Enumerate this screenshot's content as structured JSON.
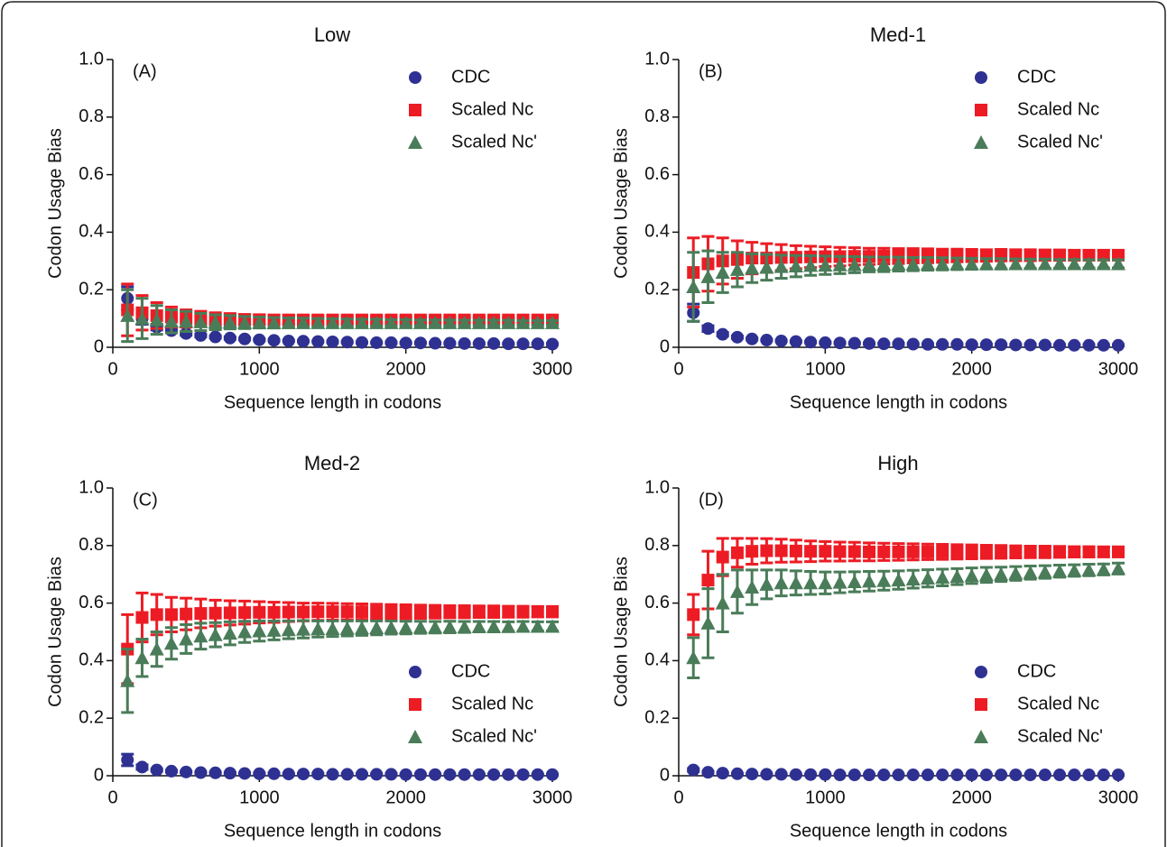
{
  "chart_data": [
    {
      "type": "scatter",
      "title": "Low",
      "panel_label": "(A)",
      "xlabel": "Sequence length in codons",
      "ylabel": "Codon Usage Bias",
      "xlim": [
        0,
        3000
      ],
      "ylim": [
        0,
        1
      ],
      "xticks": [
        0,
        1000,
        2000,
        3000
      ],
      "yticks": [
        0,
        0.2,
        0.4,
        0.6,
        0.8,
        {
          "value": 1,
          "label": "1.0"
        }
      ],
      "legend": "upper right",
      "x": [
        100,
        200,
        300,
        400,
        500,
        600,
        700,
        800,
        900,
        1000,
        1100,
        1200,
        1300,
        1400,
        1500,
        1600,
        1700,
        1800,
        1900,
        2000,
        2100,
        2200,
        2300,
        2400,
        2500,
        2600,
        2700,
        2800,
        2900,
        3000
      ],
      "series": [
        {
          "name": "CDC",
          "color": "#2e3192",
          "marker": "circle",
          "values": [
            0.17,
            0.1,
            0.07,
            0.058,
            0.048,
            0.041,
            0.036,
            0.032,
            0.029,
            0.026,
            0.024,
            0.022,
            0.021,
            0.02,
            0.019,
            0.018,
            0.017,
            0.016,
            0.016,
            0.015,
            0.015,
            0.014,
            0.014,
            0.013,
            0.013,
            0.013,
            0.012,
            0.012,
            0.012,
            0.011
          ],
          "errors": [
            0.04,
            0.02,
            0.01,
            0.008,
            0.006,
            0.005,
            0.004,
            0.004,
            0.003,
            0.003,
            0.002,
            0.002,
            0.002,
            0.002,
            0.002,
            0.002,
            0.002,
            0.002,
            0.002,
            0.002,
            0.002,
            0.002,
            0.002,
            0.002,
            0.002,
            0.002,
            0.002,
            0.002,
            0.002,
            0.002
          ]
        },
        {
          "name": "Scaled Nc",
          "color": "#ed1c24",
          "marker": "square",
          "values": [
            0.13,
            0.12,
            0.11,
            0.105,
            0.1,
            0.1,
            0.098,
            0.097,
            0.096,
            0.096,
            0.095,
            0.095,
            0.095,
            0.095,
            0.095,
            0.095,
            0.095,
            0.095,
            0.095,
            0.095,
            0.095,
            0.095,
            0.095,
            0.095,
            0.095,
            0.095,
            0.095,
            0.095,
            0.095,
            0.095
          ],
          "errors": [
            0.09,
            0.06,
            0.045,
            0.035,
            0.03,
            0.025,
            0.022,
            0.02,
            0.018,
            0.017,
            0.016,
            0.015,
            0.014,
            0.013,
            0.012,
            0.012,
            0.011,
            0.011,
            0.01,
            0.01,
            0.01,
            0.009,
            0.009,
            0.009,
            0.009,
            0.008,
            0.008,
            0.008,
            0.008,
            0.008
          ]
        },
        {
          "name": "Scaled Nc'",
          "color": "#4a7c59",
          "marker": "triangle",
          "values": [
            0.11,
            0.1,
            0.095,
            0.09,
            0.09,
            0.088,
            0.087,
            0.087,
            0.086,
            0.086,
            0.085,
            0.085,
            0.085,
            0.085,
            0.085,
            0.085,
            0.085,
            0.085,
            0.085,
            0.085,
            0.085,
            0.085,
            0.085,
            0.085,
            0.085,
            0.085,
            0.085,
            0.085,
            0.085,
            0.085
          ],
          "errors": [
            0.09,
            0.07,
            0.05,
            0.04,
            0.035,
            0.03,
            0.026,
            0.023,
            0.021,
            0.019,
            0.018,
            0.017,
            0.016,
            0.015,
            0.014,
            0.013,
            0.012,
            0.012,
            0.011,
            0.011,
            0.01,
            0.01,
            0.01,
            0.009,
            0.009,
            0.009,
            0.009,
            0.008,
            0.008,
            0.008
          ]
        }
      ]
    },
    {
      "type": "scatter",
      "title": "Med-1",
      "panel_label": "(B)",
      "xlabel": "Sequence length in codons",
      "ylabel": "Codon Usage Bias",
      "xlim": [
        0,
        3000
      ],
      "ylim": [
        0,
        1
      ],
      "xticks": [
        0,
        1000,
        2000,
        3000
      ],
      "yticks": [
        0,
        0.2,
        0.4,
        0.6,
        0.8,
        {
          "value": 1,
          "label": "1.0"
        }
      ],
      "legend": "upper right",
      "x": [
        100,
        200,
        300,
        400,
        500,
        600,
        700,
        800,
        900,
        1000,
        1100,
        1200,
        1300,
        1400,
        1500,
        1600,
        1700,
        1800,
        1900,
        2000,
        2100,
        2200,
        2300,
        2400,
        2500,
        2600,
        2700,
        2800,
        2900,
        3000
      ],
      "series": [
        {
          "name": "CDC",
          "color": "#2e3192",
          "marker": "circle",
          "values": [
            0.12,
            0.065,
            0.045,
            0.035,
            0.029,
            0.025,
            0.022,
            0.02,
            0.018,
            0.016,
            0.015,
            0.014,
            0.013,
            0.012,
            0.012,
            0.011,
            0.01,
            0.01,
            0.01,
            0.009,
            0.009,
            0.009,
            0.008,
            0.008,
            0.008,
            0.007,
            0.007,
            0.007,
            0.007,
            0.007
          ],
          "errors": [
            0.03,
            0.01,
            0.006,
            0.004,
            0.003,
            0.002,
            0.002,
            0.002,
            0.002,
            0.002,
            0.002,
            0.002,
            0.002,
            0.002,
            0.002,
            0.002,
            0.002,
            0.002,
            0.002,
            0.002,
            0.002,
            0.002,
            0.002,
            0.002,
            0.002,
            0.002,
            0.002,
            0.002,
            0.002,
            0.002
          ]
        },
        {
          "name": "Scaled Nc",
          "color": "#ed1c24",
          "marker": "square",
          "values": [
            0.26,
            0.29,
            0.3,
            0.305,
            0.31,
            0.31,
            0.312,
            0.313,
            0.314,
            0.315,
            0.315,
            0.316,
            0.316,
            0.317,
            0.317,
            0.318,
            0.318,
            0.318,
            0.319,
            0.319,
            0.319,
            0.32,
            0.32,
            0.32,
            0.32,
            0.32,
            0.32,
            0.32,
            0.32,
            0.32
          ],
          "errors": [
            0.12,
            0.095,
            0.08,
            0.065,
            0.055,
            0.05,
            0.045,
            0.04,
            0.037,
            0.034,
            0.032,
            0.03,
            0.028,
            0.027,
            0.026,
            0.025,
            0.024,
            0.023,
            0.022,
            0.021,
            0.02,
            0.02,
            0.019,
            0.019,
            0.018,
            0.018,
            0.017,
            0.017,
            0.016,
            0.016
          ]
        },
        {
          "name": "Scaled Nc'",
          "color": "#4a7c59",
          "marker": "triangle",
          "values": [
            0.21,
            0.245,
            0.26,
            0.27,
            0.275,
            0.278,
            0.28,
            0.282,
            0.284,
            0.285,
            0.286,
            0.287,
            0.288,
            0.288,
            0.289,
            0.289,
            0.29,
            0.29,
            0.29,
            0.29,
            0.29,
            0.29,
            0.29,
            0.29,
            0.29,
            0.29,
            0.29,
            0.29,
            0.29,
            0.29
          ],
          "errors": [
            0.12,
            0.09,
            0.07,
            0.06,
            0.05,
            0.045,
            0.04,
            0.037,
            0.034,
            0.032,
            0.03,
            0.028,
            0.026,
            0.025,
            0.024,
            0.023,
            0.022,
            0.021,
            0.02,
            0.019,
            0.018,
            0.018,
            0.017,
            0.016,
            0.016,
            0.015,
            0.015,
            0.014,
            0.014,
            0.014
          ]
        }
      ]
    },
    {
      "type": "scatter",
      "title": "Med-2",
      "panel_label": "(C)",
      "xlabel": "Sequence length in codons",
      "ylabel": "Codon Usage Bias",
      "xlim": [
        0,
        3000
      ],
      "ylim": [
        0,
        1
      ],
      "xticks": [
        0,
        1000,
        2000,
        3000
      ],
      "yticks": [
        0,
        0.2,
        0.4,
        0.6,
        0.8,
        {
          "value": 1,
          "label": "1.0"
        }
      ],
      "legend": "lower right",
      "x": [
        100,
        200,
        300,
        400,
        500,
        600,
        700,
        800,
        900,
        1000,
        1100,
        1200,
        1300,
        1400,
        1500,
        1600,
        1700,
        1800,
        1900,
        2000,
        2100,
        2200,
        2300,
        2400,
        2500,
        2600,
        2700,
        2800,
        2900,
        3000
      ],
      "series": [
        {
          "name": "CDC",
          "color": "#2e3192",
          "marker": "circle",
          "values": [
            0.055,
            0.03,
            0.02,
            0.016,
            0.013,
            0.011,
            0.01,
            0.009,
            0.008,
            0.007,
            0.007,
            0.006,
            0.006,
            0.006,
            0.005,
            0.005,
            0.005,
            0.005,
            0.005,
            0.004,
            0.004,
            0.004,
            0.004,
            0.004,
            0.004,
            0.004,
            0.004,
            0.004,
            0.004,
            0.004
          ],
          "errors": [
            0.02,
            0.008,
            0.004,
            0.003,
            0.002,
            0.002,
            0.002,
            0.002,
            0.002,
            0.002,
            0.002,
            0.002,
            0.002,
            0.002,
            0.002,
            0.002,
            0.002,
            0.002,
            0.002,
            0.002,
            0.002,
            0.002,
            0.002,
            0.002,
            0.002,
            0.002,
            0.002,
            0.002,
            0.002,
            0.002
          ]
        },
        {
          "name": "Scaled Nc",
          "color": "#ed1c24",
          "marker": "square",
          "values": [
            0.44,
            0.55,
            0.56,
            0.56,
            0.562,
            0.564,
            0.565,
            0.566,
            0.567,
            0.568,
            0.568,
            0.569,
            0.569,
            0.57,
            0.57,
            0.57,
            0.57,
            0.57,
            0.57,
            0.57,
            0.57,
            0.57,
            0.57,
            0.57,
            0.57,
            0.57,
            0.57,
            0.57,
            0.57,
            0.57
          ],
          "errors": [
            0.12,
            0.085,
            0.07,
            0.06,
            0.055,
            0.05,
            0.045,
            0.042,
            0.04,
            0.037,
            0.035,
            0.033,
            0.031,
            0.03,
            0.029,
            0.028,
            0.027,
            0.026,
            0.025,
            0.024,
            0.023,
            0.022,
            0.021,
            0.021,
            0.02,
            0.02,
            0.019,
            0.019,
            0.018,
            0.018
          ]
        },
        {
          "name": "Scaled Nc'",
          "color": "#4a7c59",
          "marker": "triangle",
          "values": [
            0.33,
            0.41,
            0.44,
            0.46,
            0.475,
            0.485,
            0.49,
            0.495,
            0.5,
            0.503,
            0.505,
            0.507,
            0.509,
            0.51,
            0.511,
            0.512,
            0.513,
            0.514,
            0.515,
            0.515,
            0.516,
            0.516,
            0.517,
            0.517,
            0.518,
            0.518,
            0.518,
            0.519,
            0.519,
            0.519
          ],
          "errors": [
            0.11,
            0.065,
            0.06,
            0.055,
            0.05,
            0.045,
            0.042,
            0.04,
            0.037,
            0.035,
            0.033,
            0.031,
            0.03,
            0.028,
            0.027,
            0.026,
            0.025,
            0.024,
            0.023,
            0.022,
            0.021,
            0.02,
            0.02,
            0.019,
            0.018,
            0.018,
            0.017,
            0.017,
            0.016,
            0.016
          ]
        }
      ]
    },
    {
      "type": "scatter",
      "title": "High",
      "panel_label": "(D)",
      "xlabel": "Sequence length in codons",
      "ylabel": "Codon Usage Bias",
      "xlim": [
        0,
        3000
      ],
      "ylim": [
        0,
        1
      ],
      "xticks": [
        0,
        1000,
        2000,
        3000
      ],
      "yticks": [
        0,
        0.2,
        0.4,
        0.6,
        0.8,
        {
          "value": 1,
          "label": "1.0"
        }
      ],
      "legend": "lower right",
      "x": [
        100,
        200,
        300,
        400,
        500,
        600,
        700,
        800,
        900,
        1000,
        1100,
        1200,
        1300,
        1400,
        1500,
        1600,
        1700,
        1800,
        1900,
        2000,
        2100,
        2200,
        2300,
        2400,
        2500,
        2600,
        2700,
        2800,
        2900,
        3000
      ],
      "series": [
        {
          "name": "CDC",
          "color": "#2e3192",
          "marker": "circle",
          "values": [
            0.02,
            0.012,
            0.009,
            0.007,
            0.006,
            0.005,
            0.005,
            0.004,
            0.004,
            0.004,
            0.003,
            0.003,
            0.003,
            0.003,
            0.003,
            0.003,
            0.003,
            0.003,
            0.003,
            0.003,
            0.003,
            0.003,
            0.003,
            0.003,
            0.003,
            0.003,
            0.003,
            0.003,
            0.003,
            0.003
          ],
          "errors": [
            0.005,
            0.003,
            0.002,
            0.001,
            0.001,
            0.001,
            0.001,
            0.001,
            0.001,
            0.001,
            0.001,
            0.001,
            0.001,
            0.001,
            0.001,
            0.001,
            0.001,
            0.001,
            0.001,
            0.001,
            0.001,
            0.001,
            0.001,
            0.001,
            0.001,
            0.001,
            0.001,
            0.001,
            0.001,
            0.001
          ]
        },
        {
          "name": "Scaled Nc",
          "color": "#ed1c24",
          "marker": "square",
          "values": [
            0.56,
            0.68,
            0.76,
            0.775,
            0.78,
            0.782,
            0.782,
            0.781,
            0.78,
            0.78,
            0.779,
            0.779,
            0.778,
            0.778,
            0.778,
            0.778,
            0.778,
            0.778,
            0.778,
            0.778,
            0.778,
            0.778,
            0.778,
            0.778,
            0.778,
            0.778,
            0.778,
            0.778,
            0.778,
            0.778
          ],
          "errors": [
            0.07,
            0.1,
            0.065,
            0.05,
            0.045,
            0.042,
            0.04,
            0.038,
            0.036,
            0.034,
            0.033,
            0.032,
            0.031,
            0.03,
            0.029,
            0.028,
            0.027,
            0.026,
            0.025,
            0.024,
            0.023,
            0.022,
            0.021,
            0.02,
            0.02,
            0.019,
            0.018,
            0.018,
            0.017,
            0.017
          ]
        },
        {
          "name": "Scaled Nc'",
          "color": "#4a7c59",
          "marker": "triangle",
          "values": [
            0.41,
            0.53,
            0.6,
            0.64,
            0.655,
            0.665,
            0.67,
            0.67,
            0.67,
            0.67,
            0.672,
            0.674,
            0.676,
            0.678,
            0.68,
            0.683,
            0.686,
            0.689,
            0.692,
            0.695,
            0.698,
            0.7,
            0.703,
            0.706,
            0.708,
            0.711,
            0.713,
            0.715,
            0.717,
            0.72
          ],
          "errors": [
            0.07,
            0.12,
            0.1,
            0.075,
            0.06,
            0.05,
            0.045,
            0.042,
            0.04,
            0.038,
            0.036,
            0.035,
            0.034,
            0.033,
            0.032,
            0.031,
            0.03,
            0.029,
            0.028,
            0.027,
            0.026,
            0.025,
            0.024,
            0.023,
            0.022,
            0.021,
            0.02,
            0.02,
            0.019,
            0.019
          ]
        }
      ]
    }
  ]
}
